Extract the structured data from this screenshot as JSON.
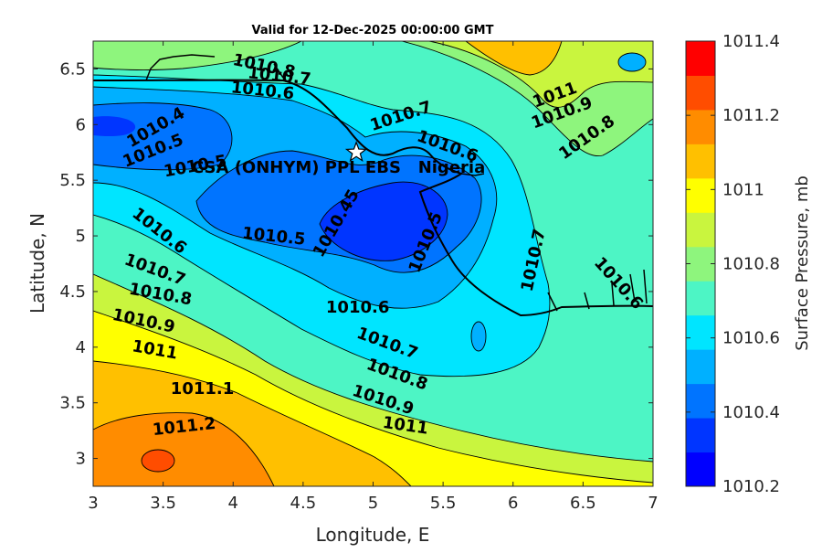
{
  "chart_data": {
    "type": "heatmap",
    "subtype": "filled-contour-map",
    "title": "Valid for 12-Dec-2025 00:00:00 GMT",
    "xlabel": "Longitude, E",
    "ylabel": "Latitude, N",
    "colorbar_label": "Surface Pressure, mb",
    "xlim": [
      3,
      7
    ],
    "ylim": [
      2.75,
      6.75
    ],
    "x_ticks": [
      "3",
      "3.5",
      "4",
      "4.5",
      "5",
      "5.5",
      "6",
      "6.5",
      "7"
    ],
    "y_ticks": [
      "3",
      "3.5",
      "4",
      "4.5",
      "5",
      "5.5",
      "6",
      "6.5"
    ],
    "colorbar_ticks": [
      "1010.2",
      "1010.4",
      "1010.6",
      "1010.8",
      "1011",
      "1011.2",
      "1011.4"
    ],
    "colorbar_range": [
      1010.2,
      1011.4
    ],
    "colorbar_colors": [
      "#0000ff",
      "#0035ff",
      "#0074ff",
      "#00b0ff",
      "#00e5ff",
      "#4df5c5",
      "#8ef57d",
      "#c9f53e",
      "#ffff00",
      "#ffc000",
      "#ff8c00",
      "#ff4d00",
      "#ff0000"
    ],
    "site_marker": {
      "lon": 4.88,
      "lat": 5.75,
      "symbol": "star"
    },
    "site_label": "CSA (ONHYM) PPL EBS   Nigeria",
    "contour_labels": [
      {
        "text": "1010.8",
        "lon": 4.22,
        "lat": 6.52
      },
      {
        "text": "1010.7",
        "lon": 4.33,
        "lat": 6.43
      },
      {
        "text": "1010.6",
        "lon": 4.21,
        "lat": 6.3
      },
      {
        "text": "1010.4",
        "lon": 3.45,
        "lat": 5.97
      },
      {
        "text": "1010.5",
        "lon": 3.43,
        "lat": 5.76
      },
      {
        "text": "1010.5",
        "lon": 3.73,
        "lat": 5.62
      },
      {
        "text": "1010.6",
        "lon": 3.47,
        "lat": 5.04
      },
      {
        "text": "1010.7",
        "lon": 3.44,
        "lat": 4.69
      },
      {
        "text": "1010.8",
        "lon": 3.48,
        "lat": 4.47
      },
      {
        "text": "1010.9",
        "lon": 3.36,
        "lat": 4.23
      },
      {
        "text": "1011",
        "lon": 3.44,
        "lat": 3.97
      },
      {
        "text": "1011.1",
        "lon": 3.78,
        "lat": 3.62
      },
      {
        "text": "1011.2",
        "lon": 3.65,
        "lat": 3.28
      },
      {
        "text": "1010.5",
        "lon": 4.29,
        "lat": 4.99
      },
      {
        "text": "1010.45",
        "lon": 4.74,
        "lat": 5.11
      },
      {
        "text": "1010.6",
        "lon": 4.89,
        "lat": 4.35
      },
      {
        "text": "1010.7",
        "lon": 5.2,
        "lat": 6.07
      },
      {
        "text": "1010.6",
        "lon": 5.53,
        "lat": 5.8
      },
      {
        "text": "1010.5",
        "lon": 5.38,
        "lat": 4.94
      },
      {
        "text": "1010.7",
        "lon": 5.1,
        "lat": 4.03
      },
      {
        "text": "1010.8",
        "lon": 5.17,
        "lat": 3.75
      },
      {
        "text": "1010.9",
        "lon": 5.07,
        "lat": 3.52
      },
      {
        "text": "1011",
        "lon": 5.23,
        "lat": 3.29
      },
      {
        "text": "1011",
        "lon": 6.3,
        "lat": 6.26
      },
      {
        "text": "1010.9",
        "lon": 6.35,
        "lat": 6.1
      },
      {
        "text": "1010.8",
        "lon": 6.53,
        "lat": 5.88
      },
      {
        "text": "1010.7",
        "lon": 6.15,
        "lat": 4.78
      },
      {
        "text": "1010.6",
        "lon": 6.75,
        "lat": 4.57
      }
    ]
  }
}
